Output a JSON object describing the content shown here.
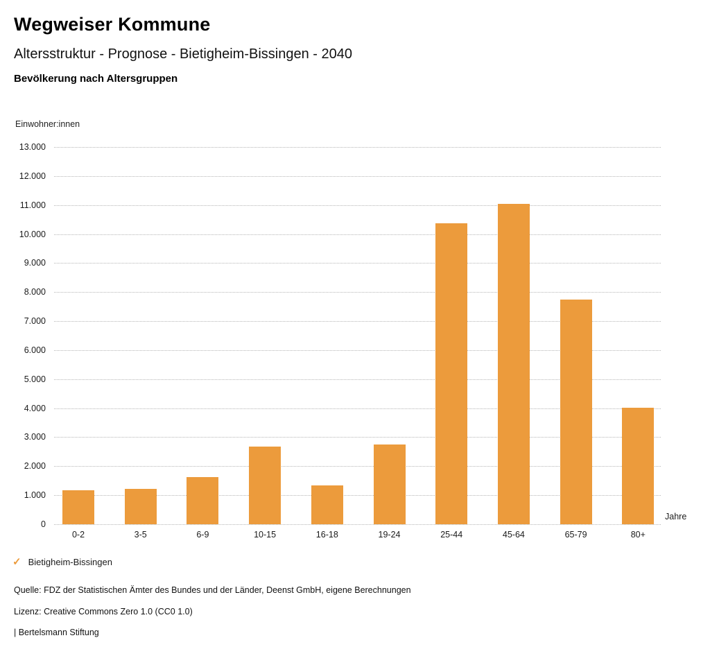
{
  "header": {
    "title": "Wegweiser Kommune",
    "subtitle": "Altersstruktur - Prognose - Bietigheim-Bissingen - 2040",
    "chart_heading": "Bevölkerung nach Altersgruppen"
  },
  "chart_data": {
    "type": "bar",
    "title": "Bevölkerung nach Altersgruppen",
    "series_name": "Bietigheim-Bissingen",
    "categories": [
      "0-2",
      "3-5",
      "6-9",
      "10-15",
      "16-18",
      "19-24",
      "25-44",
      "45-64",
      "65-79",
      "80+"
    ],
    "values": [
      1170,
      1210,
      1630,
      2670,
      1340,
      2750,
      10360,
      11040,
      7750,
      4020
    ],
    "xlabel": "Jahre",
    "ylabel": "Einwohner:innen",
    "ylim": [
      0,
      13000
    ],
    "ytick_step": 1000,
    "ytick_labels": [
      "0",
      "1.000",
      "2.000",
      "3.000",
      "4.000",
      "5.000",
      "6.000",
      "7.000",
      "8.000",
      "9.000",
      "10.000",
      "11.000",
      "12.000",
      "13.000"
    ],
    "grid": "horizontal-dotted",
    "legend_position": "bottom-left",
    "bar_color": "#EC9B3C"
  },
  "legend": {
    "check_icon": "✓",
    "label": "Bietigheim-Bissingen"
  },
  "footer": {
    "source": "Quelle: FDZ der Statistischen Ämter des Bundes und der Länder, Deenst GmbH, eigene Berechnungen",
    "license": "Lizenz: Creative Commons Zero 1.0 (CC0 1.0)",
    "brand": "| Bertelsmann Stiftung"
  },
  "colors": {
    "accent": "#EC9B3C",
    "grid": "#B5B5B5",
    "text": "#1A1A1A"
  }
}
